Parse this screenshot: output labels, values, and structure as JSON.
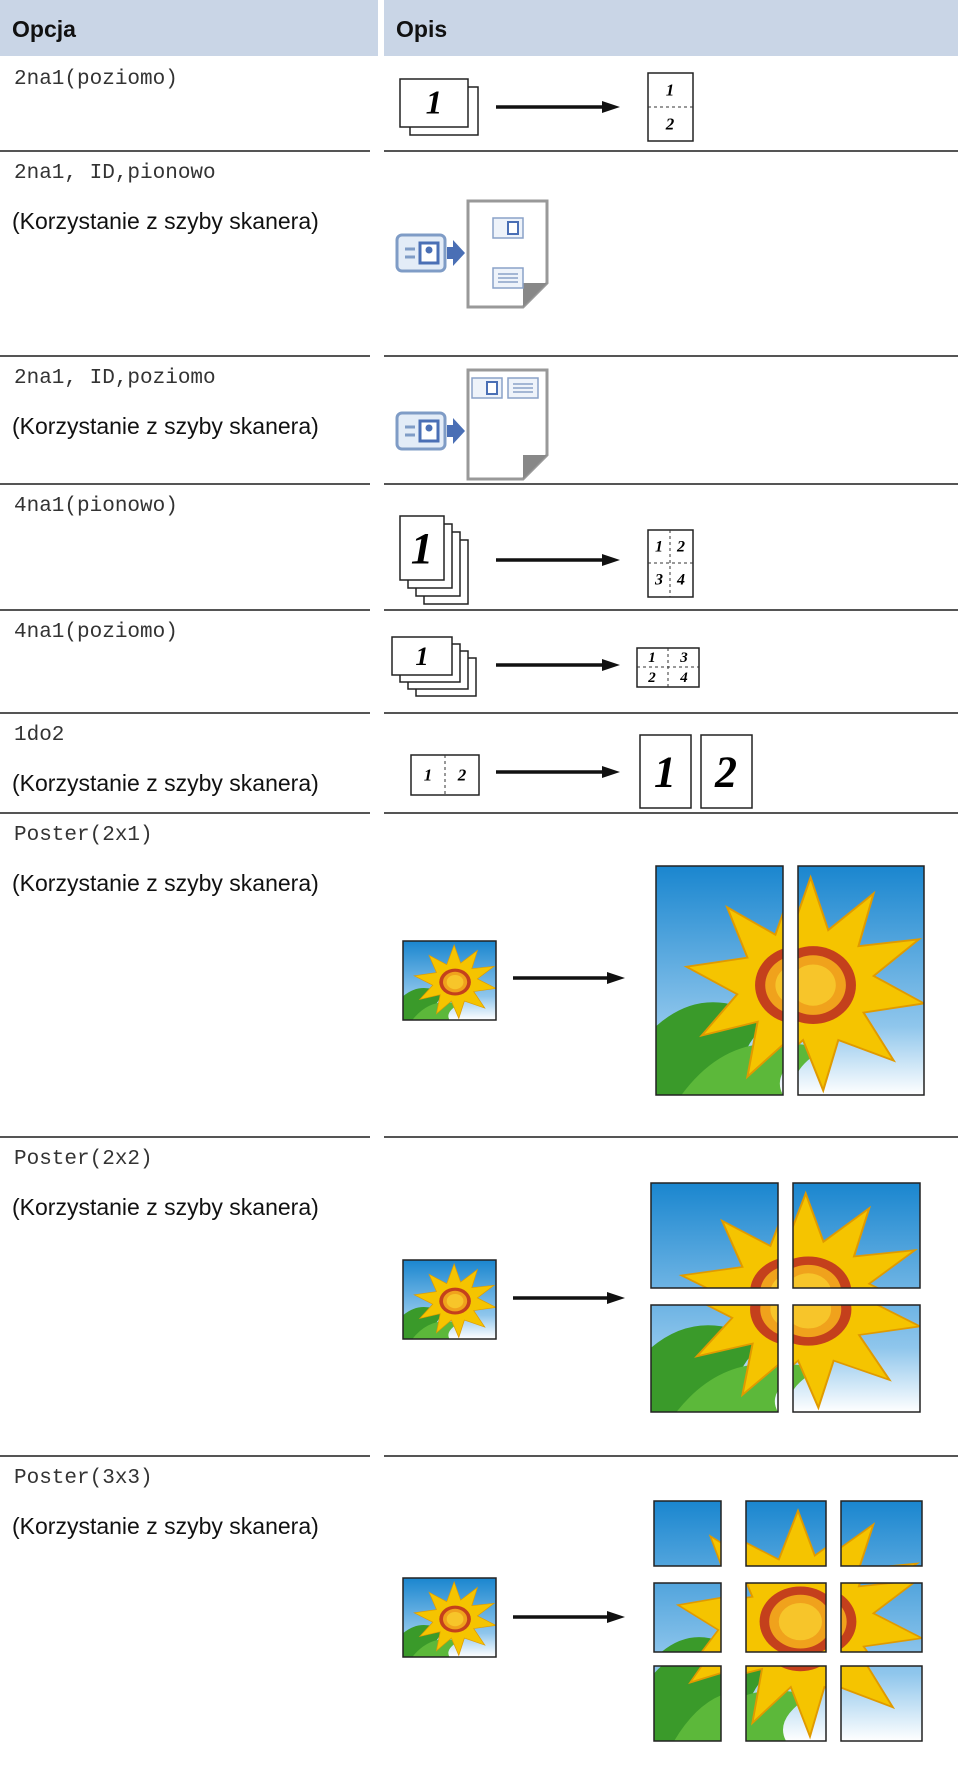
{
  "table": {
    "header": [
      "Opcja",
      "Opis"
    ],
    "rows": [
      {
        "option": "2na1(poziomo)",
        "figure_text": [
          "1",
          "1",
          "2"
        ]
      },
      {
        "option": "2na1, ID,pionowo",
        "note": "(Korzystanie z szyby skanera)"
      },
      {
        "option": "2na1, ID,poziomo",
        "note": "(Korzystanie z szyby skanera)"
      },
      {
        "option": "4na1(pionowo)",
        "figure_text": [
          "1",
          "1",
          "2",
          "3",
          "4"
        ]
      },
      {
        "option": "4na1(poziomo)",
        "figure_text": [
          "1",
          "1",
          "3",
          "2",
          "4"
        ]
      },
      {
        "option": "1do2",
        "note": "(Korzystanie z szyby skanera)",
        "figure_text": [
          "1",
          "2",
          "1",
          "2"
        ]
      },
      {
        "option": "Poster(2x1)",
        "note": "(Korzystanie z szyby skanera)"
      },
      {
        "option": "Poster(2x2)",
        "note": "(Korzystanie z szyby skanera)"
      },
      {
        "option": "Poster(3x3)",
        "note": "(Korzystanie z szyby skanera)"
      }
    ]
  }
}
